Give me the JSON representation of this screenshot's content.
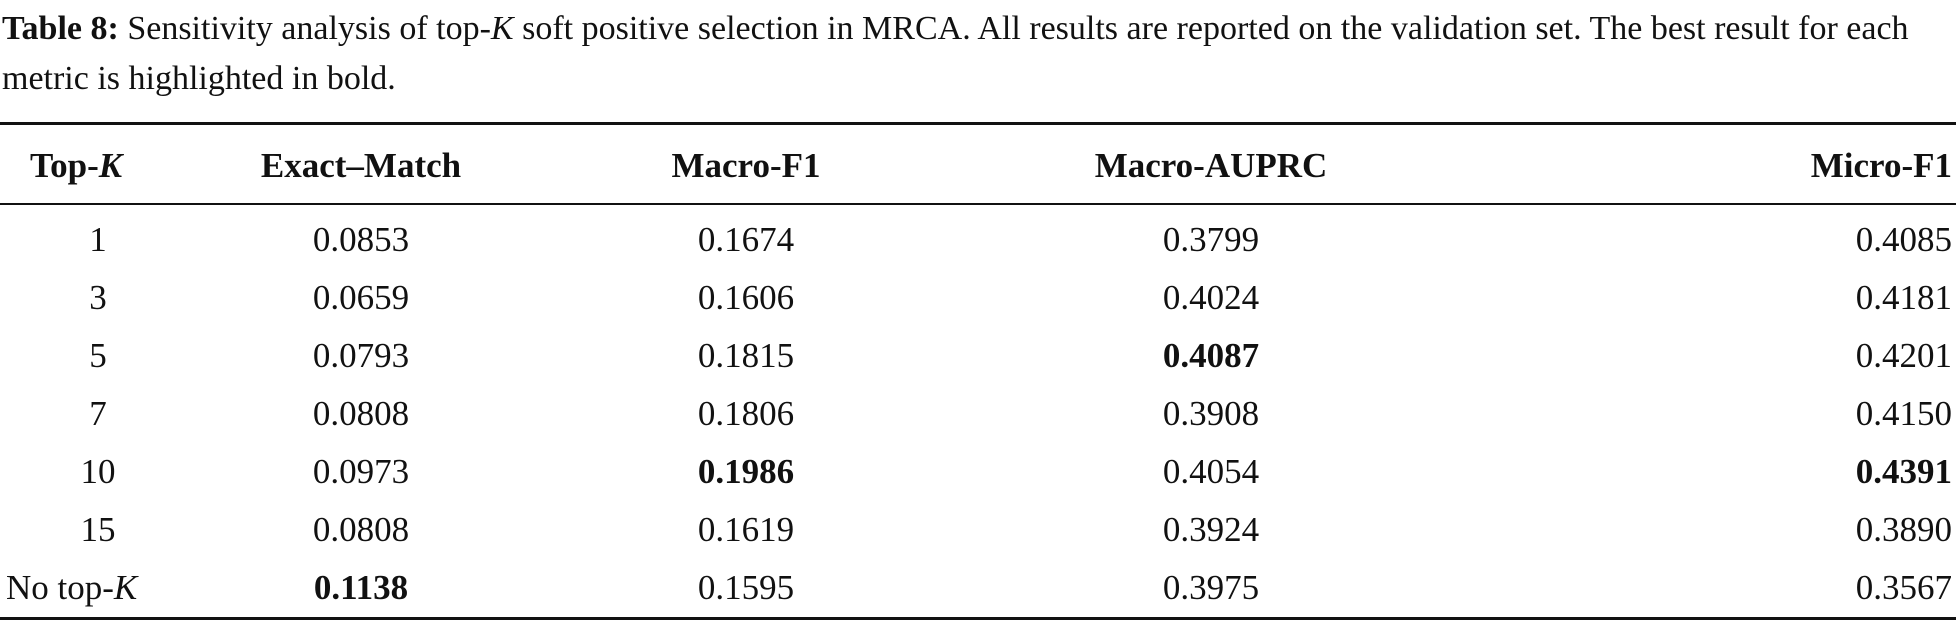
{
  "caption": {
    "label": "Table 8:",
    "text_before_k": " Sensitivity analysis of top-",
    "k": "K",
    "text_after_k": " soft positive selection in MRCA. All results are reported on the validation set. The best result for each metric is highlighted in bold."
  },
  "table": {
    "headers": [
      {
        "prefix": "Top-",
        "italic": "K"
      },
      {
        "text": "Exact–Match"
      },
      {
        "text": "Macro-F1"
      },
      {
        "text": "Macro-AUPRC"
      },
      {
        "text": "Micro-F1"
      }
    ],
    "rows": [
      {
        "label": "1",
        "values": [
          "0.0853",
          "0.1674",
          "0.3799",
          "0.4085"
        ],
        "bold": [
          false,
          false,
          false,
          false
        ]
      },
      {
        "label": "3",
        "values": [
          "0.0659",
          "0.1606",
          "0.4024",
          "0.4181"
        ],
        "bold": [
          false,
          false,
          false,
          false
        ]
      },
      {
        "label": "5",
        "values": [
          "0.0793",
          "0.1815",
          "0.4087",
          "0.4201"
        ],
        "bold": [
          false,
          false,
          true,
          false
        ]
      },
      {
        "label": "7",
        "values": [
          "0.0808",
          "0.1806",
          "0.3908",
          "0.4150"
        ],
        "bold": [
          false,
          false,
          false,
          false
        ]
      },
      {
        "label": "10",
        "values": [
          "0.0973",
          "0.1986",
          "0.4054",
          "0.4391"
        ],
        "bold": [
          false,
          true,
          false,
          true
        ]
      },
      {
        "label": "15",
        "values": [
          "0.0808",
          "0.1619",
          "0.3924",
          "0.3890"
        ],
        "bold": [
          false,
          false,
          false,
          false
        ]
      },
      {
        "label_prefix": "No top-",
        "label_italic": "K",
        "values": [
          "0.1138",
          "0.1595",
          "0.3975",
          "0.3567"
        ],
        "bold": [
          true,
          false,
          false,
          false
        ]
      }
    ]
  }
}
